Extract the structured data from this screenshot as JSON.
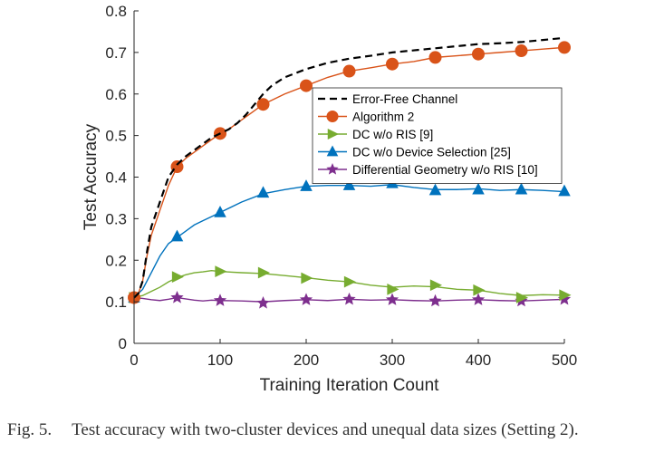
{
  "chart_data": {
    "type": "line",
    "title": "",
    "xlabel": "Training Iteration Count",
    "ylabel": "Test Accuracy",
    "xlim": [
      0,
      500
    ],
    "ylim": [
      0,
      0.8
    ],
    "xticks": [
      "0",
      "100",
      "200",
      "300",
      "400",
      "500"
    ],
    "yticks": [
      "0",
      "0.1",
      "0.2",
      "0.3",
      "0.4",
      "0.5",
      "0.6",
      "0.7",
      "0.8"
    ],
    "grid": false,
    "legend_position": "center-right",
    "series": [
      {
        "name": "Error-Free Channel",
        "color": "#000000",
        "style": "dashed",
        "marker": "none",
        "x": [
          0,
          5,
          10,
          15,
          20,
          30,
          40,
          50,
          60,
          70,
          80,
          90,
          100,
          110,
          120,
          130,
          140,
          150,
          160,
          175,
          200,
          225,
          250,
          275,
          300,
          325,
          350,
          375,
          400,
          425,
          450,
          475,
          500
        ],
        "y": [
          0.11,
          0.12,
          0.15,
          0.22,
          0.28,
          0.34,
          0.4,
          0.43,
          0.45,
          0.465,
          0.48,
          0.495,
          0.505,
          0.515,
          0.53,
          0.55,
          0.575,
          0.6,
          0.62,
          0.64,
          0.66,
          0.675,
          0.685,
          0.692,
          0.7,
          0.705,
          0.71,
          0.715,
          0.72,
          0.722,
          0.725,
          0.73,
          0.735
        ]
      },
      {
        "name": "Algorithm 2",
        "color": "#d95319",
        "style": "solid",
        "marker": "circle",
        "x": [
          0,
          5,
          10,
          15,
          20,
          30,
          40,
          50,
          60,
          70,
          80,
          90,
          100,
          110,
          120,
          130,
          140,
          150,
          175,
          200,
          225,
          250,
          275,
          300,
          325,
          350,
          375,
          400,
          425,
          450,
          475,
          500
        ],
        "y": [
          0.11,
          0.12,
          0.15,
          0.21,
          0.26,
          0.32,
          0.38,
          0.425,
          0.445,
          0.46,
          0.475,
          0.49,
          0.505,
          0.515,
          0.53,
          0.545,
          0.56,
          0.575,
          0.6,
          0.62,
          0.64,
          0.655,
          0.663,
          0.672,
          0.678,
          0.688,
          0.692,
          0.696,
          0.7,
          0.704,
          0.708,
          0.712
        ],
        "marker_x": [
          0,
          50,
          100,
          150,
          200,
          250,
          300,
          350,
          400,
          450,
          500
        ],
        "marker_y": [
          0.11,
          0.425,
          0.505,
          0.575,
          0.62,
          0.655,
          0.672,
          0.688,
          0.696,
          0.704,
          0.712
        ]
      },
      {
        "name": "DC w/o RIS [9]",
        "color": "#77ac30",
        "style": "solid",
        "marker": "triangle-right",
        "x": [
          0,
          10,
          20,
          30,
          40,
          50,
          60,
          70,
          80,
          90,
          100,
          125,
          150,
          175,
          200,
          225,
          250,
          275,
          300,
          325,
          350,
          375,
          400,
          425,
          450,
          475,
          500
        ],
        "y": [
          0.11,
          0.115,
          0.125,
          0.135,
          0.148,
          0.158,
          0.165,
          0.17,
          0.172,
          0.175,
          0.173,
          0.17,
          0.168,
          0.163,
          0.158,
          0.152,
          0.148,
          0.14,
          0.135,
          0.138,
          0.136,
          0.13,
          0.128,
          0.12,
          0.115,
          0.117,
          0.116
        ],
        "marker_x": [
          0,
          50,
          100,
          150,
          200,
          250,
          300,
          350,
          400,
          450,
          500
        ],
        "marker_y": [
          0.11,
          0.16,
          0.173,
          0.17,
          0.157,
          0.148,
          0.13,
          0.14,
          0.128,
          0.11,
          0.116
        ]
      },
      {
        "name": "DC w/o Device Selection [25]",
        "color": "#0072bd",
        "style": "solid",
        "marker": "triangle-up",
        "x": [
          0,
          10,
          20,
          30,
          40,
          50,
          60,
          70,
          80,
          90,
          100,
          125,
          150,
          175,
          200,
          225,
          250,
          275,
          300,
          325,
          350,
          375,
          400,
          425,
          450,
          475,
          500
        ],
        "y": [
          0.11,
          0.13,
          0.17,
          0.21,
          0.24,
          0.255,
          0.27,
          0.285,
          0.295,
          0.305,
          0.315,
          0.34,
          0.36,
          0.37,
          0.378,
          0.38,
          0.38,
          0.378,
          0.382,
          0.375,
          0.37,
          0.37,
          0.372,
          0.368,
          0.37,
          0.368,
          0.365
        ],
        "marker_x": [
          0,
          50,
          100,
          150,
          200,
          250,
          300,
          350,
          400,
          450,
          500
        ],
        "marker_y": [
          0.11,
          0.257,
          0.315,
          0.362,
          0.378,
          0.38,
          0.385,
          0.368,
          0.37,
          0.37,
          0.366
        ]
      },
      {
        "name": "Differential Geometry w/o RIS [10]",
        "color": "#7e2f8e",
        "style": "solid",
        "marker": "star",
        "x": [
          0,
          10,
          20,
          30,
          40,
          50,
          60,
          70,
          80,
          90,
          100,
          125,
          150,
          175,
          200,
          225,
          250,
          275,
          300,
          325,
          350,
          375,
          400,
          425,
          450,
          475,
          500
        ],
        "y": [
          0.11,
          0.108,
          0.105,
          0.103,
          0.106,
          0.11,
          0.107,
          0.104,
          0.102,
          0.104,
          0.103,
          0.102,
          0.1,
          0.103,
          0.105,
          0.103,
          0.106,
          0.104,
          0.105,
          0.103,
          0.102,
          0.104,
          0.105,
          0.103,
          0.102,
          0.104,
          0.106
        ],
        "marker_x": [
          0,
          50,
          100,
          150,
          200,
          250,
          300,
          350,
          400,
          450,
          500
        ],
        "marker_y": [
          0.11,
          0.11,
          0.103,
          0.097,
          0.105,
          0.106,
          0.105,
          0.102,
          0.105,
          0.102,
          0.106
        ]
      }
    ]
  },
  "caption": {
    "label": "Fig. 5.",
    "text": "Test accuracy with two-cluster devices and unequal data sizes (Setting 2)."
  }
}
